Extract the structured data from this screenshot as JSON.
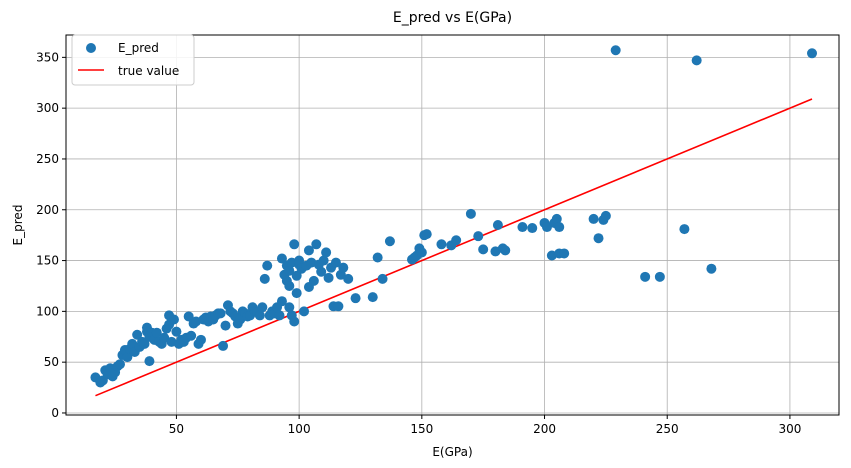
{
  "chart_data": {
    "type": "scatter",
    "title": "E_pred vs E(GPa)",
    "xlabel": "E(GPa)",
    "ylabel": "E_pred",
    "xlim": [
      5,
      320
    ],
    "ylim": [
      -2,
      372
    ],
    "xticks": [
      50,
      100,
      150,
      200,
      250,
      300
    ],
    "yticks": [
      0,
      50,
      100,
      150,
      200,
      250,
      300,
      350
    ],
    "grid": true,
    "legend_position": "top-left",
    "colors": {
      "scatter": "#1f77b4",
      "line": "#ff0000",
      "grid": "#b0b0b0"
    },
    "series": [
      {
        "name": "E_pred",
        "kind": "scatter",
        "points": [
          [
            17,
            35
          ],
          [
            19,
            30
          ],
          [
            20,
            32
          ],
          [
            21,
            42
          ],
          [
            22,
            38
          ],
          [
            23,
            44
          ],
          [
            24,
            36
          ],
          [
            25,
            40
          ],
          [
            26,
            46
          ],
          [
            27,
            48
          ],
          [
            28,
            57
          ],
          [
            29,
            62
          ],
          [
            30,
            55
          ],
          [
            31,
            63
          ],
          [
            32,
            68
          ],
          [
            33,
            60
          ],
          [
            34,
            77
          ],
          [
            35,
            65
          ],
          [
            36,
            70
          ],
          [
            37,
            68
          ],
          [
            38,
            80
          ],
          [
            38,
            84
          ],
          [
            39,
            51
          ],
          [
            39,
            75
          ],
          [
            40,
            79
          ],
          [
            41,
            72
          ],
          [
            42,
            79
          ],
          [
            43,
            70
          ],
          [
            44,
            68
          ],
          [
            45,
            74
          ],
          [
            46,
            83
          ],
          [
            47,
            87
          ],
          [
            47,
            96
          ],
          [
            48,
            70
          ],
          [
            49,
            92
          ],
          [
            50,
            80
          ],
          [
            51,
            68
          ],
          [
            52,
            72
          ],
          [
            53,
            70
          ],
          [
            54,
            74
          ],
          [
            55,
            95
          ],
          [
            56,
            76
          ],
          [
            57,
            88
          ],
          [
            58,
            90
          ],
          [
            59,
            68
          ],
          [
            60,
            72
          ],
          [
            61,
            92
          ],
          [
            62,
            94
          ],
          [
            63,
            90
          ],
          [
            64,
            95
          ],
          [
            65,
            92
          ],
          [
            66,
            96
          ],
          [
            67,
            98
          ],
          [
            68,
            98
          ],
          [
            69,
            66
          ],
          [
            70,
            86
          ],
          [
            71,
            106
          ],
          [
            72,
            100
          ],
          [
            73,
            98
          ],
          [
            74,
            95
          ],
          [
            75,
            88
          ],
          [
            76,
            92
          ],
          [
            77,
            100
          ],
          [
            78,
            98
          ],
          [
            79,
            95
          ],
          [
            80,
            96
          ],
          [
            81,
            104
          ],
          [
            82,
            100
          ],
          [
            83,
            99
          ],
          [
            84,
            96
          ],
          [
            85,
            104
          ],
          [
            86,
            132
          ],
          [
            87,
            145
          ],
          [
            88,
            96
          ],
          [
            89,
            100
          ],
          [
            90,
            98
          ],
          [
            91,
            104
          ],
          [
            92,
            96
          ],
          [
            93,
            110
          ],
          [
            93,
            152
          ],
          [
            94,
            136
          ],
          [
            95,
            145
          ],
          [
            95,
            130
          ],
          [
            96,
            140
          ],
          [
            96,
            125
          ],
          [
            96,
            104
          ],
          [
            97,
            148
          ],
          [
            97,
            96
          ],
          [
            98,
            166
          ],
          [
            98,
            90
          ],
          [
            99,
            135
          ],
          [
            99,
            118
          ],
          [
            100,
            146
          ],
          [
            100,
            150
          ],
          [
            101,
            142
          ],
          [
            102,
            100
          ],
          [
            103,
            145
          ],
          [
            104,
            160
          ],
          [
            104,
            124
          ],
          [
            105,
            148
          ],
          [
            106,
            130
          ],
          [
            107,
            166
          ],
          [
            108,
            146
          ],
          [
            109,
            139
          ],
          [
            110,
            150
          ],
          [
            111,
            158
          ],
          [
            112,
            133
          ],
          [
            113,
            143
          ],
          [
            114,
            105
          ],
          [
            115,
            148
          ],
          [
            116,
            105
          ],
          [
            117,
            136
          ],
          [
            118,
            143
          ],
          [
            120,
            132
          ],
          [
            123,
            113
          ],
          [
            130,
            114
          ],
          [
            132,
            153
          ],
          [
            134,
            132
          ],
          [
            137,
            169
          ],
          [
            146,
            151
          ],
          [
            147,
            153
          ],
          [
            148,
            155
          ],
          [
            149,
            162
          ],
          [
            150,
            158
          ],
          [
            151,
            175
          ],
          [
            152,
            176
          ],
          [
            158,
            166
          ],
          [
            162,
            165
          ],
          [
            164,
            170
          ],
          [
            170,
            196
          ],
          [
            173,
            174
          ],
          [
            175,
            161
          ],
          [
            180,
            159
          ],
          [
            181,
            185
          ],
          [
            183,
            162
          ],
          [
            184,
            160
          ],
          [
            191,
            183
          ],
          [
            195,
            182
          ],
          [
            200,
            187
          ],
          [
            201,
            183
          ],
          [
            203,
            155
          ],
          [
            204,
            187
          ],
          [
            205,
            191
          ],
          [
            206,
            183
          ],
          [
            206,
            157
          ],
          [
            208,
            157
          ],
          [
            220,
            191
          ],
          [
            222,
            172
          ],
          [
            224,
            190
          ],
          [
            225,
            194
          ],
          [
            229,
            357
          ],
          [
            241,
            134
          ],
          [
            247,
            134
          ],
          [
            257,
            181
          ],
          [
            262,
            347
          ],
          [
            268,
            142
          ],
          [
            309,
            354
          ]
        ]
      },
      {
        "name": "true value",
        "kind": "line",
        "points": [
          [
            17,
            17
          ],
          [
            309,
            309
          ]
        ]
      }
    ]
  }
}
